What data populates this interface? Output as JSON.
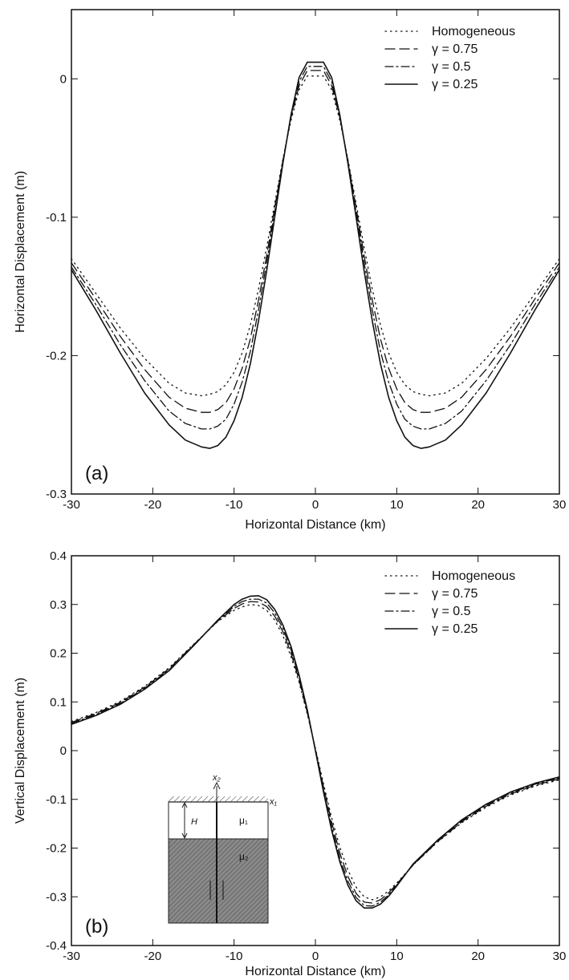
{
  "chart_data": [
    {
      "type": "line",
      "panel_label": "(a)",
      "xlabel": "Horizontal Distance (km)",
      "ylabel": "Horizontal Displacement (m)",
      "xlim": [
        -30,
        30
      ],
      "ylim": [
        -0.3,
        0.05
      ],
      "xticks": [
        -30,
        -20,
        -10,
        0,
        10,
        20,
        30
      ],
      "yticks": [
        -0.3,
        -0.2,
        -0.1,
        0
      ],
      "ytick_labels": [
        "-0.3",
        "-0.2",
        "-0.1",
        "0"
      ],
      "grid": false,
      "legend_position": "top-right",
      "x": [
        -30,
        -27,
        -24,
        -21,
        -18,
        -16,
        -14,
        -13,
        -12,
        -11,
        -10,
        -9,
        -8,
        -7,
        -6,
        -5,
        -4,
        -3,
        -2,
        -1,
        0,
        1,
        2,
        3,
        4,
        5,
        6,
        7,
        8,
        9,
        10,
        11,
        12,
        13,
        14,
        16,
        18,
        21,
        24,
        27,
        30
      ],
      "series": [
        {
          "name": "Homogeneous",
          "dash": "dotted",
          "values": [
            -0.13,
            -0.155,
            -0.18,
            -0.202,
            -0.22,
            -0.227,
            -0.229,
            -0.228,
            -0.226,
            -0.221,
            -0.212,
            -0.198,
            -0.178,
            -0.152,
            -0.122,
            -0.09,
            -0.058,
            -0.03,
            -0.008,
            0.002,
            0.002,
            0.002,
            -0.008,
            -0.03,
            -0.058,
            -0.09,
            -0.122,
            -0.152,
            -0.178,
            -0.198,
            -0.212,
            -0.221,
            -0.226,
            -0.228,
            -0.229,
            -0.227,
            -0.22,
            -0.202,
            -0.18,
            -0.155,
            -0.13
          ]
        },
        {
          "name": "γ = 0.75",
          "dash": "dashed",
          "values": [
            -0.133,
            -0.159,
            -0.186,
            -0.21,
            -0.23,
            -0.238,
            -0.241,
            -0.241,
            -0.239,
            -0.234,
            -0.224,
            -0.209,
            -0.188,
            -0.16,
            -0.128,
            -0.093,
            -0.059,
            -0.028,
            -0.005,
            0.006,
            0.006,
            0.006,
            -0.005,
            -0.028,
            -0.059,
            -0.093,
            -0.128,
            -0.16,
            -0.188,
            -0.209,
            -0.224,
            -0.234,
            -0.239,
            -0.241,
            -0.241,
            -0.238,
            -0.23,
            -0.21,
            -0.186,
            -0.159,
            -0.133
          ]
        },
        {
          "name": "γ = 0.5",
          "dash": "dashdot",
          "values": [
            -0.136,
            -0.163,
            -0.192,
            -0.218,
            -0.24,
            -0.249,
            -0.253,
            -0.253,
            -0.251,
            -0.246,
            -0.235,
            -0.219,
            -0.197,
            -0.167,
            -0.133,
            -0.096,
            -0.06,
            -0.027,
            -0.002,
            0.009,
            0.009,
            0.009,
            -0.002,
            -0.027,
            -0.06,
            -0.096,
            -0.133,
            -0.167,
            -0.197,
            -0.219,
            -0.235,
            -0.246,
            -0.251,
            -0.253,
            -0.253,
            -0.249,
            -0.24,
            -0.218,
            -0.192,
            -0.163,
            -0.136
          ]
        },
        {
          "name": "γ = 0.25",
          "dash": "solid",
          "values": [
            -0.138,
            -0.167,
            -0.198,
            -0.227,
            -0.25,
            -0.261,
            -0.266,
            -0.267,
            -0.265,
            -0.259,
            -0.247,
            -0.23,
            -0.206,
            -0.175,
            -0.139,
            -0.1,
            -0.061,
            -0.026,
            0.001,
            0.012,
            0.012,
            0.012,
            0.001,
            -0.026,
            -0.061,
            -0.1,
            -0.139,
            -0.175,
            -0.206,
            -0.23,
            -0.247,
            -0.259,
            -0.265,
            -0.267,
            -0.266,
            -0.261,
            -0.25,
            -0.227,
            -0.198,
            -0.167,
            -0.138
          ]
        }
      ]
    },
    {
      "type": "line",
      "panel_label": "(b)",
      "xlabel": "Horizontal Distance (km)",
      "ylabel": "Vertical Displacement (m)",
      "xlim": [
        -30,
        30
      ],
      "ylim": [
        -0.4,
        0.4
      ],
      "xticks": [
        -30,
        -20,
        -10,
        0,
        10,
        20,
        30
      ],
      "yticks": [
        -0.4,
        -0.3,
        -0.2,
        -0.1,
        0,
        0.1,
        0.2,
        0.3,
        0.4
      ],
      "ytick_labels": [
        "-0.4",
        "-0.3",
        "-0.2",
        "-0.1",
        "0",
        "0.1",
        "0.2",
        "0.3",
        "0.4"
      ],
      "grid": false,
      "legend_position": "top-right",
      "inset": {
        "labels": {
          "x2": "x₂",
          "x1": "x₁",
          "H": "H",
          "mu1": "μ₁",
          "mu2": "μ₂"
        }
      },
      "x": [
        -30,
        -27,
        -24,
        -21,
        -18,
        -15,
        -12,
        -10,
        -9,
        -8,
        -7,
        -6,
        -5,
        -4,
        -3,
        -2,
        -1,
        0,
        1,
        2,
        3,
        4,
        5,
        6,
        7,
        8,
        9,
        10,
        12,
        15,
        18,
        21,
        24,
        27,
        30
      ],
      "series": [
        {
          "name": "Homogeneous",
          "dash": "dotted",
          "values": [
            0.06,
            0.078,
            0.101,
            0.132,
            0.17,
            0.218,
            0.265,
            0.288,
            0.295,
            0.3,
            0.298,
            0.288,
            0.268,
            0.236,
            0.193,
            0.14,
            0.075,
            0.005,
            -0.068,
            -0.138,
            -0.198,
            -0.245,
            -0.28,
            -0.3,
            -0.306,
            -0.3,
            -0.288,
            -0.272,
            -0.235,
            -0.188,
            -0.148,
            -0.116,
            -0.091,
            -0.073,
            -0.06
          ]
        },
        {
          "name": "γ = 0.75",
          "dash": "dashed",
          "values": [
            0.058,
            0.076,
            0.099,
            0.13,
            0.168,
            0.217,
            0.266,
            0.292,
            0.301,
            0.306,
            0.305,
            0.296,
            0.276,
            0.244,
            0.2,
            0.145,
            0.078,
            0.003,
            -0.074,
            -0.147,
            -0.21,
            -0.258,
            -0.293,
            -0.311,
            -0.313,
            -0.306,
            -0.292,
            -0.274,
            -0.235,
            -0.187,
            -0.146,
            -0.114,
            -0.089,
            -0.071,
            -0.058
          ]
        },
        {
          "name": "γ = 0.5",
          "dash": "dashdot",
          "values": [
            0.056,
            0.074,
            0.097,
            0.128,
            0.166,
            0.216,
            0.267,
            0.296,
            0.306,
            0.311,
            0.311,
            0.303,
            0.283,
            0.251,
            0.207,
            0.15,
            0.081,
            0.001,
            -0.08,
            -0.156,
            -0.22,
            -0.268,
            -0.301,
            -0.318,
            -0.319,
            -0.311,
            -0.296,
            -0.276,
            -0.234,
            -0.185,
            -0.144,
            -0.112,
            -0.087,
            -0.069,
            -0.056
          ]
        },
        {
          "name": "γ = 0.25",
          "dash": "solid",
          "values": [
            0.054,
            0.072,
            0.095,
            0.126,
            0.164,
            0.215,
            0.268,
            0.3,
            0.311,
            0.317,
            0.318,
            0.31,
            0.29,
            0.258,
            0.214,
            0.155,
            0.084,
            0.0,
            -0.085,
            -0.164,
            -0.228,
            -0.276,
            -0.308,
            -0.323,
            -0.323,
            -0.315,
            -0.299,
            -0.278,
            -0.233,
            -0.184,
            -0.142,
            -0.11,
            -0.085,
            -0.067,
            -0.054
          ]
        }
      ]
    }
  ]
}
